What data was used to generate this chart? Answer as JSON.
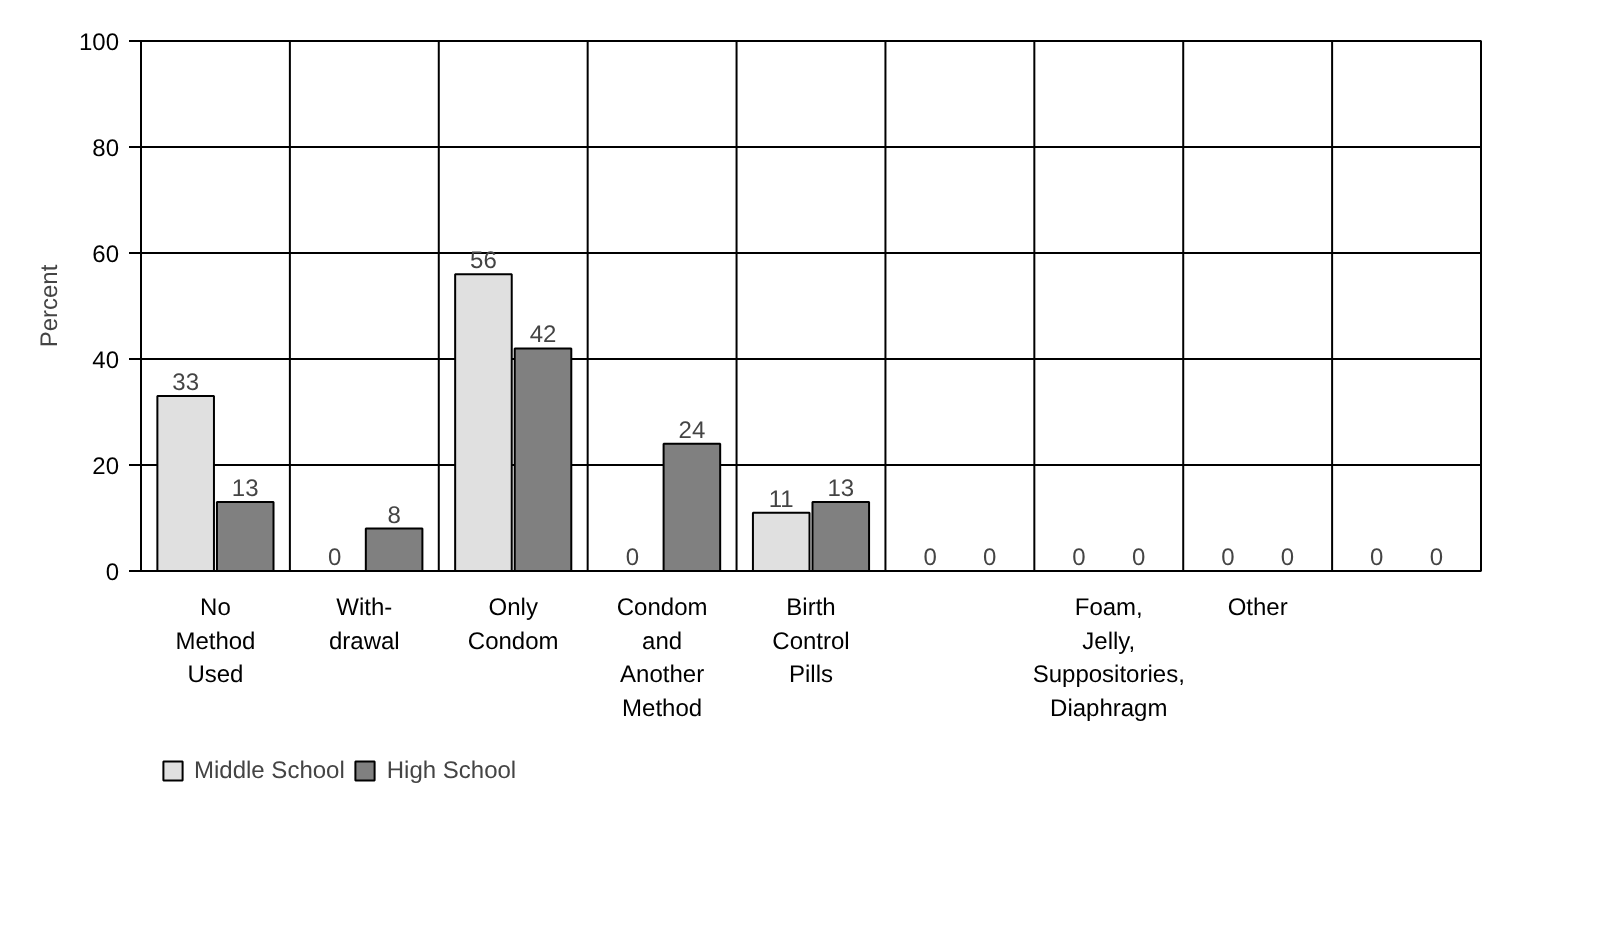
{
  "chart_data": {
    "type": "bar",
    "ylabel": "Percent",
    "categories": [
      "No\nMethod\nUsed",
      "With-\ndrawal",
      "Only\nCondom",
      "Condom\nand\nAnother\nMethod",
      "Birth\nControl\nPills",
      null,
      "Foam,\nJelly,\nSuppositories,\nDiaphragm",
      "Other",
      null
    ],
    "series": [
      {
        "name": "Middle School",
        "color": "#e0e0e0",
        "values": [
          33,
          0,
          56,
          0,
          11,
          0,
          0,
          0,
          0
        ]
      },
      {
        "name": "High School",
        "color": "#808080",
        "values": [
          13,
          8,
          42,
          24,
          13,
          0,
          0,
          0,
          0
        ]
      }
    ],
    "ylim": [
      0,
      100
    ],
    "yticks": [
      0,
      20,
      40,
      60,
      80,
      100
    ],
    "grid": true,
    "legend": "bottom left",
    "data_labels": true
  }
}
